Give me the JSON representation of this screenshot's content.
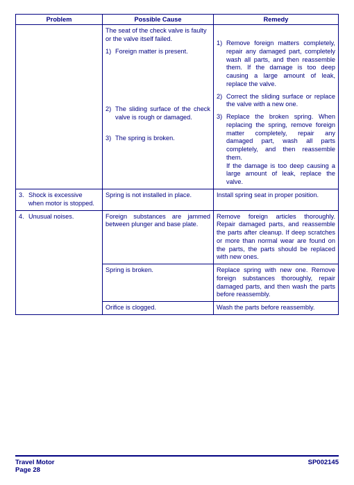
{
  "headers": {
    "problem": "Problem",
    "cause": "Possible Cause",
    "remedy": "Remedy"
  },
  "row1": {
    "cause_intro": "The seat of the check valve is faulty or the valve itself failed.",
    "c1_n": "1)",
    "c1_t": "Foreign matter is present.",
    "c2_n": "2)",
    "c2_t": "The sliding surface of the check valve is rough or damaged.",
    "c3_n": "3)",
    "c3_t": "The spring is broken.",
    "r1_n": "1)",
    "r1_t": "Remove foreign matters completely, repair any damaged part, completely wash all parts, and then reassemble them. If the damage is too deep causing a large amount of leak, replace the valve.",
    "r2_n": "2)",
    "r2_t": "Correct the sliding surface or replace the valve with a new one.",
    "r3_n": "3)",
    "r3_t1": "Replace the broken spring. When replacing the spring, remove foreign matter completely, repair any damaged part, wash all parts completely, and then reassemble them.",
    "r3_t2": "If the damage is too deep causing a large amount of leak, replace the valve."
  },
  "row3": {
    "idx": "3.",
    "problem": "Shock is excessive when motor is stopped.",
    "cause": "Spring is not installed in place.",
    "remedy": "Install spring seat in proper position."
  },
  "row4": {
    "idx": "4.",
    "problem": "Unusual noises.",
    "cause_a": "Foreign substances are jammed between plunger and base plate.",
    "remedy_a": "Remove foreign articles thoroughly. Repair damaged parts, and reassemble the parts after cleanup. If deep scratches or more than normal wear are found on the parts, the parts should be replaced with new ones.",
    "cause_b": "Spring is broken.",
    "remedy_b": "Replace spring with new one. Remove foreign substances thoroughly, repair damaged parts, and then wash the parts before reassembly.",
    "cause_c": "Orifice is clogged.",
    "remedy_c": "Wash the parts before reassembly."
  },
  "footer": {
    "left1": "Travel Motor",
    "left2": "Page 28",
    "right": "SP002145"
  }
}
